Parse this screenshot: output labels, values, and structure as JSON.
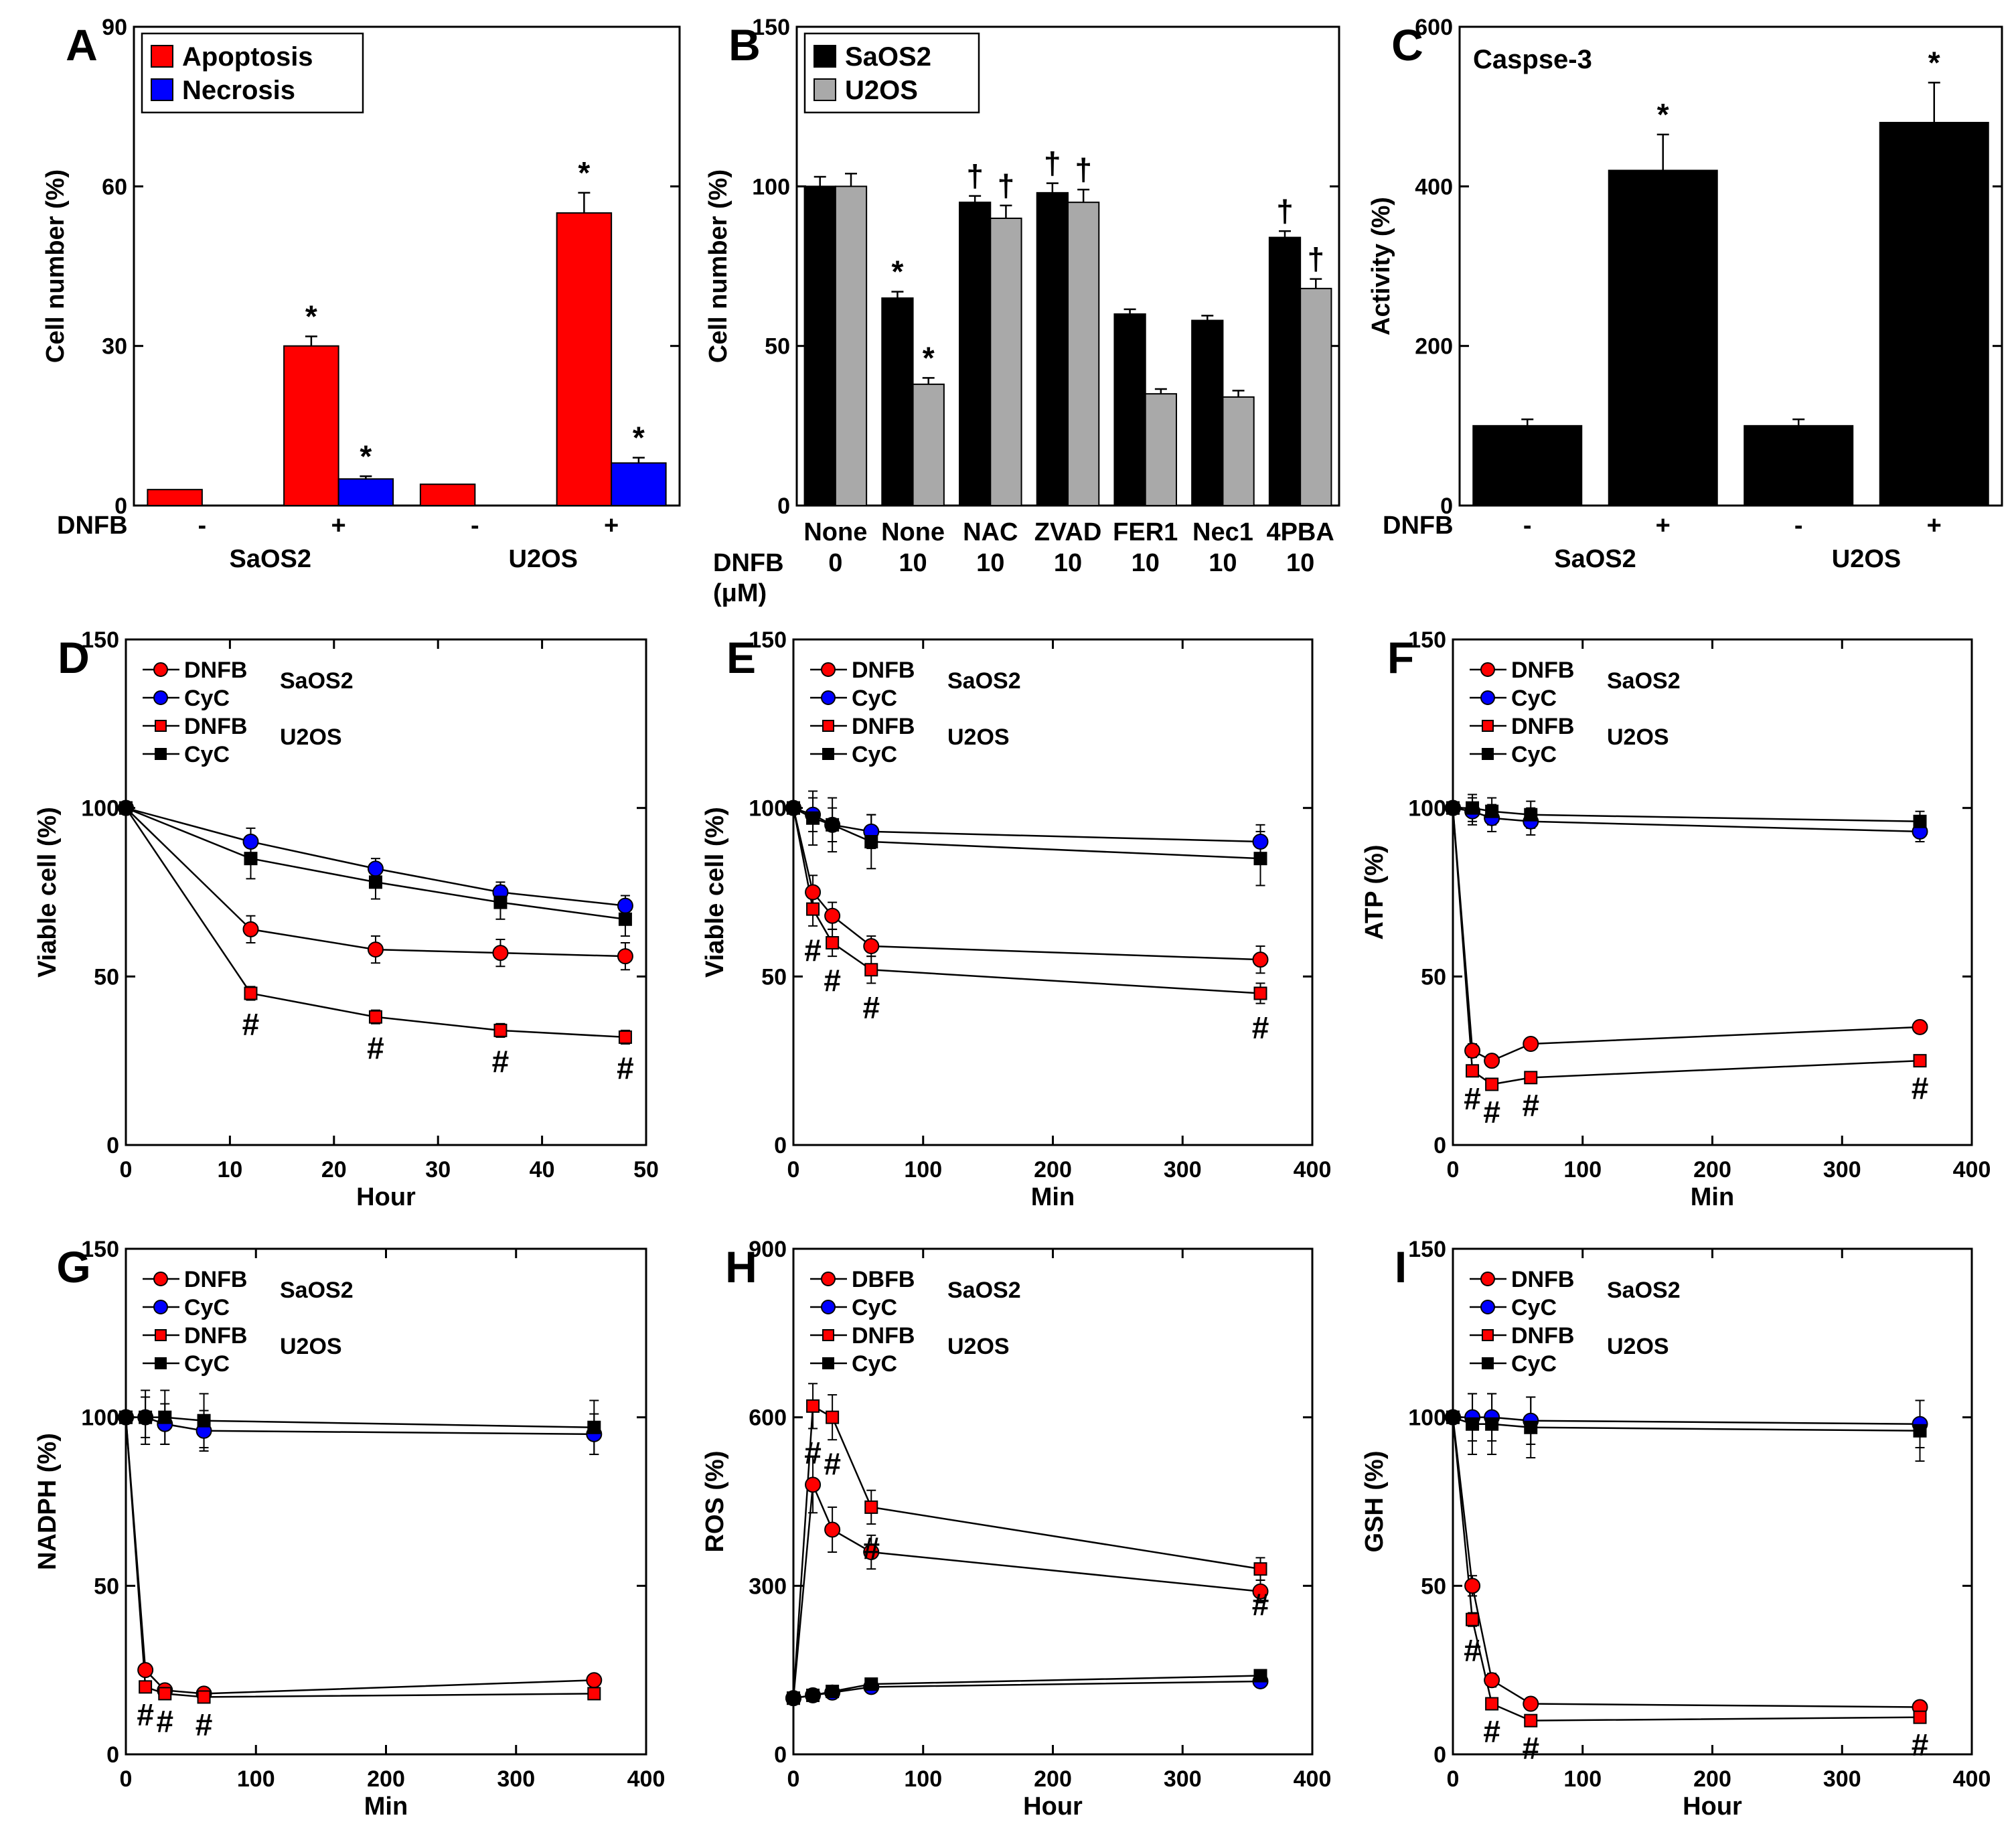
{
  "figure": {
    "title": ""
  },
  "chart_data": [
    {
      "id": "A",
      "type": "bar",
      "panel_label": "A",
      "ylabel": "Cell number (%)",
      "ylim": [
        0,
        90
      ],
      "yticks": [
        0,
        30,
        60,
        90
      ],
      "row_label": "DNFB",
      "categories": [
        "-",
        "+",
        "-",
        "+"
      ],
      "groups": [
        "SaOS2",
        "U2OS"
      ],
      "series": [
        {
          "name": "Apoptosis",
          "color": "#ff0000",
          "values": [
            3,
            30,
            4,
            55
          ],
          "err": [
            0,
            1.8,
            0,
            3.8
          ],
          "marks": [
            "",
            "*",
            "",
            "*"
          ]
        },
        {
          "name": "Necrosis",
          "color": "#0000ff",
          "values": [
            0,
            5,
            0,
            8
          ],
          "err": [
            0,
            0.5,
            0,
            1
          ],
          "marks": [
            "",
            "*",
            "",
            "*"
          ]
        }
      ]
    },
    {
      "id": "B",
      "type": "bar",
      "panel_label": "B",
      "ylabel": "Cell number (%)",
      "ylim": [
        0,
        150
      ],
      "yticks": [
        0,
        50,
        100,
        150
      ],
      "categories": [
        "None",
        "None",
        "NAC",
        "ZVAD",
        "FER1",
        "Nec1",
        "4PBA"
      ],
      "row_label": "DNFB",
      "row_unit": "(μM)",
      "dose": [
        "0",
        "10",
        "10",
        "10",
        "10",
        "10",
        "10"
      ],
      "series": [
        {
          "name": "SaOS2",
          "color": "#000000",
          "values": [
            100,
            65,
            95,
            98,
            60,
            58,
            84
          ],
          "err": [
            3,
            2,
            2,
            3,
            1.5,
            1.5,
            2
          ],
          "marks": [
            "",
            "*",
            "†",
            "†",
            "",
            "",
            "†"
          ]
        },
        {
          "name": "U2OS",
          "color": "#a9a9a9",
          "values": [
            100,
            38,
            90,
            95,
            35,
            34,
            68
          ],
          "err": [
            4,
            2,
            4,
            4,
            1.5,
            2,
            3
          ],
          "marks": [
            "",
            "*",
            "†",
            "†",
            "",
            "",
            "†"
          ]
        }
      ]
    },
    {
      "id": "C",
      "type": "bar",
      "panel_label": "C",
      "title": "Caspse-3",
      "ylabel": "Activity (%)",
      "ylim": [
        0,
        600
      ],
      "yticks": [
        0,
        200,
        400,
        600
      ],
      "row_label": "DNFB",
      "categories": [
        "-",
        "+",
        "-",
        "+"
      ],
      "groups": [
        "SaOS2",
        "U2OS"
      ],
      "series": [
        {
          "name": "Caspase-3",
          "color": "#000000",
          "values": [
            100,
            420,
            100,
            480
          ],
          "err": [
            8,
            45,
            8,
            50
          ],
          "marks": [
            "",
            "*",
            "",
            "*"
          ]
        }
      ]
    },
    {
      "id": "D",
      "type": "line",
      "panel_label": "D",
      "xlabel": "Hour",
      "ylabel": "Viable cell (%)",
      "xlim": [
        0,
        50
      ],
      "xticks": [
        0,
        10,
        20,
        30,
        40,
        50
      ],
      "ylim": [
        0,
        150
      ],
      "yticks": [
        0,
        50,
        100,
        150
      ],
      "legend_groups": [
        "SaOS2",
        "U2OS"
      ],
      "x": [
        0,
        12,
        24,
        36,
        48
      ],
      "series": [
        {
          "name": "DNFB",
          "group": "SaOS2",
          "marker": "circle",
          "color": "#ff0000",
          "values": [
            100,
            64,
            58,
            57,
            56
          ],
          "err": [
            0,
            4,
            4,
            4,
            4
          ]
        },
        {
          "name": "CyC",
          "group": "SaOS2",
          "marker": "circle",
          "color": "#0000ff",
          "values": [
            100,
            90,
            82,
            75,
            71
          ],
          "err": [
            0,
            4,
            3,
            3,
            3
          ]
        },
        {
          "name": "DNFB",
          "group": "U2OS",
          "marker": "square",
          "color": "#ff0000",
          "values": [
            100,
            45,
            38,
            34,
            32
          ],
          "err": [
            0,
            2,
            2,
            2,
            2
          ],
          "marks": [
            "",
            "#",
            "#",
            "#",
            "#"
          ]
        },
        {
          "name": "CyC",
          "group": "U2OS",
          "marker": "square",
          "color": "#000000",
          "values": [
            100,
            85,
            78,
            72,
            67
          ],
          "err": [
            0,
            6,
            5,
            5,
            5
          ]
        }
      ]
    },
    {
      "id": "E",
      "type": "line",
      "panel_label": "E",
      "xlabel": "Min",
      "ylabel": "Viable cell (%)",
      "xlim": [
        0,
        400
      ],
      "xticks": [
        0,
        100,
        200,
        300,
        400
      ],
      "ylim": [
        0,
        150
      ],
      "yticks": [
        0,
        50,
        100,
        150
      ],
      "legend_groups": [
        "SaOS2",
        "U2OS"
      ],
      "x": [
        0,
        15,
        30,
        60,
        360
      ],
      "series": [
        {
          "name": "DNFB",
          "group": "SaOS2",
          "marker": "circle",
          "color": "#ff0000",
          "values": [
            100,
            75,
            68,
            59,
            55
          ],
          "err": [
            0,
            5,
            4,
            3,
            4
          ]
        },
        {
          "name": "CyC",
          "group": "SaOS2",
          "marker": "circle",
          "color": "#0000ff",
          "values": [
            100,
            98,
            95,
            93,
            90
          ],
          "err": [
            0,
            5,
            5,
            5,
            5
          ]
        },
        {
          "name": "DNFB",
          "group": "U2OS",
          "marker": "square",
          "color": "#ff0000",
          "values": [
            100,
            70,
            60,
            52,
            45
          ],
          "err": [
            0,
            5,
            4,
            4,
            3
          ],
          "marks": [
            "",
            "#",
            "#",
            "#",
            "#"
          ]
        },
        {
          "name": "CyC",
          "group": "U2OS",
          "marker": "square",
          "color": "#000000",
          "values": [
            100,
            97,
            95,
            90,
            85
          ],
          "err": [
            0,
            8,
            8,
            8,
            8
          ]
        }
      ]
    },
    {
      "id": "F",
      "type": "line",
      "panel_label": "F",
      "xlabel": "Min",
      "ylabel": "ATP (%)",
      "xlim": [
        0,
        400
      ],
      "xticks": [
        0,
        100,
        200,
        300,
        400
      ],
      "ylim": [
        0,
        150
      ],
      "yticks": [
        0,
        50,
        100,
        150
      ],
      "legend_groups": [
        "SaOS2",
        "U2OS"
      ],
      "x": [
        0,
        15,
        30,
        60,
        360
      ],
      "series": [
        {
          "name": "DNFB",
          "group": "SaOS2",
          "marker": "circle",
          "color": "#ff0000",
          "values": [
            100,
            28,
            25,
            30,
            35
          ],
          "err": [
            0,
            2,
            1,
            1,
            1
          ]
        },
        {
          "name": "CyC",
          "group": "SaOS2",
          "marker": "circle",
          "color": "#0000ff",
          "values": [
            100,
            99,
            97,
            96,
            93
          ],
          "err": [
            0,
            4,
            4,
            4,
            3
          ]
        },
        {
          "name": "DNFB",
          "group": "U2OS",
          "marker": "square",
          "color": "#ff0000",
          "values": [
            100,
            22,
            18,
            20,
            25
          ],
          "err": [
            0,
            1,
            1,
            1,
            1
          ],
          "marks": [
            "",
            "#",
            "#",
            "#",
            "#"
          ]
        },
        {
          "name": "CyC",
          "group": "U2OS",
          "marker": "square",
          "color": "#000000",
          "values": [
            100,
            100,
            99,
            98,
            96
          ],
          "err": [
            0,
            4,
            4,
            4,
            3
          ]
        }
      ]
    },
    {
      "id": "G",
      "type": "line",
      "panel_label": "G",
      "xlabel": "Min",
      "ylabel": "NADPH (%)",
      "xlim": [
        0,
        400
      ],
      "xticks": [
        0,
        100,
        200,
        300,
        400
      ],
      "ylim": [
        0,
        150
      ],
      "yticks": [
        0,
        50,
        100,
        150
      ],
      "legend_groups": [
        "SaOS2",
        "U2OS"
      ],
      "x": [
        0,
        15,
        30,
        60,
        360
      ],
      "series": [
        {
          "name": "DNFB",
          "group": "SaOS2",
          "marker": "circle",
          "color": "#ff0000",
          "values": [
            100,
            25,
            19,
            18,
            22
          ],
          "err": [
            0,
            1,
            1,
            1,
            1
          ]
        },
        {
          "name": "CyC",
          "group": "SaOS2",
          "marker": "circle",
          "color": "#0000ff",
          "values": [
            100,
            100,
            98,
            96,
            95
          ],
          "err": [
            0,
            6,
            6,
            6,
            6
          ]
        },
        {
          "name": "DNFB",
          "group": "U2OS",
          "marker": "square",
          "color": "#ff0000",
          "values": [
            100,
            20,
            18,
            17,
            18
          ],
          "err": [
            0,
            1,
            1,
            1,
            1
          ],
          "marks": [
            "",
            "#",
            "#",
            "#",
            ""
          ]
        },
        {
          "name": "CyC",
          "group": "U2OS",
          "marker": "square",
          "color": "#000000",
          "values": [
            100,
            100,
            100,
            99,
            97
          ],
          "err": [
            0,
            8,
            8,
            8,
            8
          ]
        }
      ]
    },
    {
      "id": "H",
      "type": "line",
      "panel_label": "H",
      "xlabel": "Hour",
      "ylabel": "ROS (%)",
      "xlim": [
        0,
        400
      ],
      "xticks": [
        0,
        100,
        200,
        300,
        400
      ],
      "ylim": [
        0,
        900
      ],
      "yticks": [
        0,
        300,
        600,
        900
      ],
      "legend_groups": [
        "SaOS2",
        "U2OS"
      ],
      "x": [
        0,
        15,
        30,
        60,
        360
      ],
      "series": [
        {
          "name": "DBFB",
          "group": "SaOS2",
          "marker": "circle",
          "color": "#ff0000",
          "values": [
            100,
            480,
            400,
            360,
            290
          ],
          "err": [
            0,
            50,
            40,
            30,
            20
          ]
        },
        {
          "name": "CyC",
          "group": "SaOS2",
          "marker": "circle",
          "color": "#0000ff",
          "values": [
            100,
            105,
            110,
            120,
            130
          ],
          "err": [
            0,
            8,
            8,
            8,
            8
          ]
        },
        {
          "name": "DNFB",
          "group": "U2OS",
          "marker": "square",
          "color": "#ff0000",
          "values": [
            100,
            620,
            600,
            440,
            330
          ],
          "err": [
            0,
            40,
            40,
            30,
            20
          ],
          "marks": [
            "",
            "#",
            "#",
            "#",
            "#"
          ]
        },
        {
          "name": "CyC",
          "group": "U2OS",
          "marker": "square",
          "color": "#000000",
          "values": [
            100,
            105,
            112,
            125,
            140
          ],
          "err": [
            0,
            8,
            8,
            8,
            8
          ]
        }
      ]
    },
    {
      "id": "I",
      "type": "line",
      "panel_label": "I",
      "xlabel": "Hour",
      "ylabel": "GSH (%)",
      "xlim": [
        0,
        400
      ],
      "xticks": [
        0,
        100,
        200,
        300,
        400
      ],
      "ylim": [
        0,
        150
      ],
      "yticks": [
        0,
        50,
        100,
        150
      ],
      "legend_groups": [
        "SaOS2",
        "U2OS"
      ],
      "x": [
        0,
        15,
        30,
        60,
        360
      ],
      "series": [
        {
          "name": "DNFB",
          "group": "SaOS2",
          "marker": "circle",
          "color": "#ff0000",
          "values": [
            100,
            50,
            22,
            15,
            14
          ],
          "err": [
            0,
            3,
            2,
            1,
            1
          ]
        },
        {
          "name": "CyC",
          "group": "SaOS2",
          "marker": "circle",
          "color": "#0000ff",
          "values": [
            100,
            100,
            100,
            99,
            98
          ],
          "err": [
            0,
            7,
            7,
            7,
            7
          ]
        },
        {
          "name": "DNFB",
          "group": "U2OS",
          "marker": "square",
          "color": "#ff0000",
          "values": [
            100,
            40,
            15,
            10,
            11
          ],
          "err": [
            0,
            2,
            1,
            1,
            1
          ],
          "marks": [
            "",
            "#",
            "#",
            "#",
            "#"
          ]
        },
        {
          "name": "CyC",
          "group": "U2OS",
          "marker": "square",
          "color": "#000000",
          "values": [
            100,
            98,
            98,
            97,
            96
          ],
          "err": [
            0,
            9,
            9,
            9,
            9
          ]
        }
      ]
    }
  ]
}
